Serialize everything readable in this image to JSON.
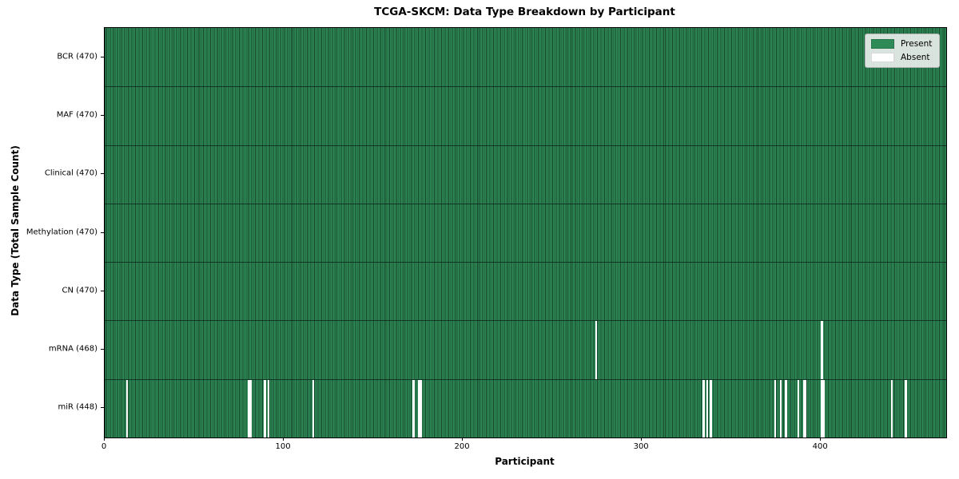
{
  "colors": {
    "present": "#2e8b57",
    "absent": "#ffffff",
    "cell_edge": "rgba(0,0,0,0.5)",
    "legend_bg": "rgba(242,242,242,0.88)"
  },
  "chart_data": {
    "type": "heatmap",
    "title": "TCGA-SKCM: Data Type Breakdown by Participant",
    "xlabel": "Participant",
    "ylabel": "Data Type (Total Sample Count)",
    "xlim": [
      0,
      470
    ],
    "x_ticks": [
      0,
      100,
      200,
      300,
      400
    ],
    "n_participants": 470,
    "grid": "off",
    "legend_position": "upper right",
    "legend": [
      "Present",
      "Absent"
    ],
    "rows": [
      {
        "label": "BCR (470)",
        "data_type": "BCR",
        "total": 470,
        "absent_participants": []
      },
      {
        "label": "MAF (470)",
        "data_type": "MAF",
        "total": 470,
        "absent_participants": []
      },
      {
        "label": "Clinical (470)",
        "data_type": "Clinical",
        "total": 470,
        "absent_participants": []
      },
      {
        "label": "Methylation (470)",
        "data_type": "Methylation",
        "total": 470,
        "absent_participants": []
      },
      {
        "label": "CN (470)",
        "data_type": "CN",
        "total": 470,
        "absent_participants": []
      },
      {
        "label": "mRNA (468)",
        "data_type": "mRNA",
        "total": 468,
        "absent_participants": [
          274,
          400
        ]
      },
      {
        "label": "miR (448)",
        "data_type": "miR",
        "total": 448,
        "absent_participants": [
          12,
          80,
          81,
          89,
          91,
          116,
          172,
          175,
          176,
          334,
          336,
          338,
          374,
          377,
          380,
          387,
          390,
          391,
          400,
          401,
          439,
          447
        ]
      }
    ]
  }
}
